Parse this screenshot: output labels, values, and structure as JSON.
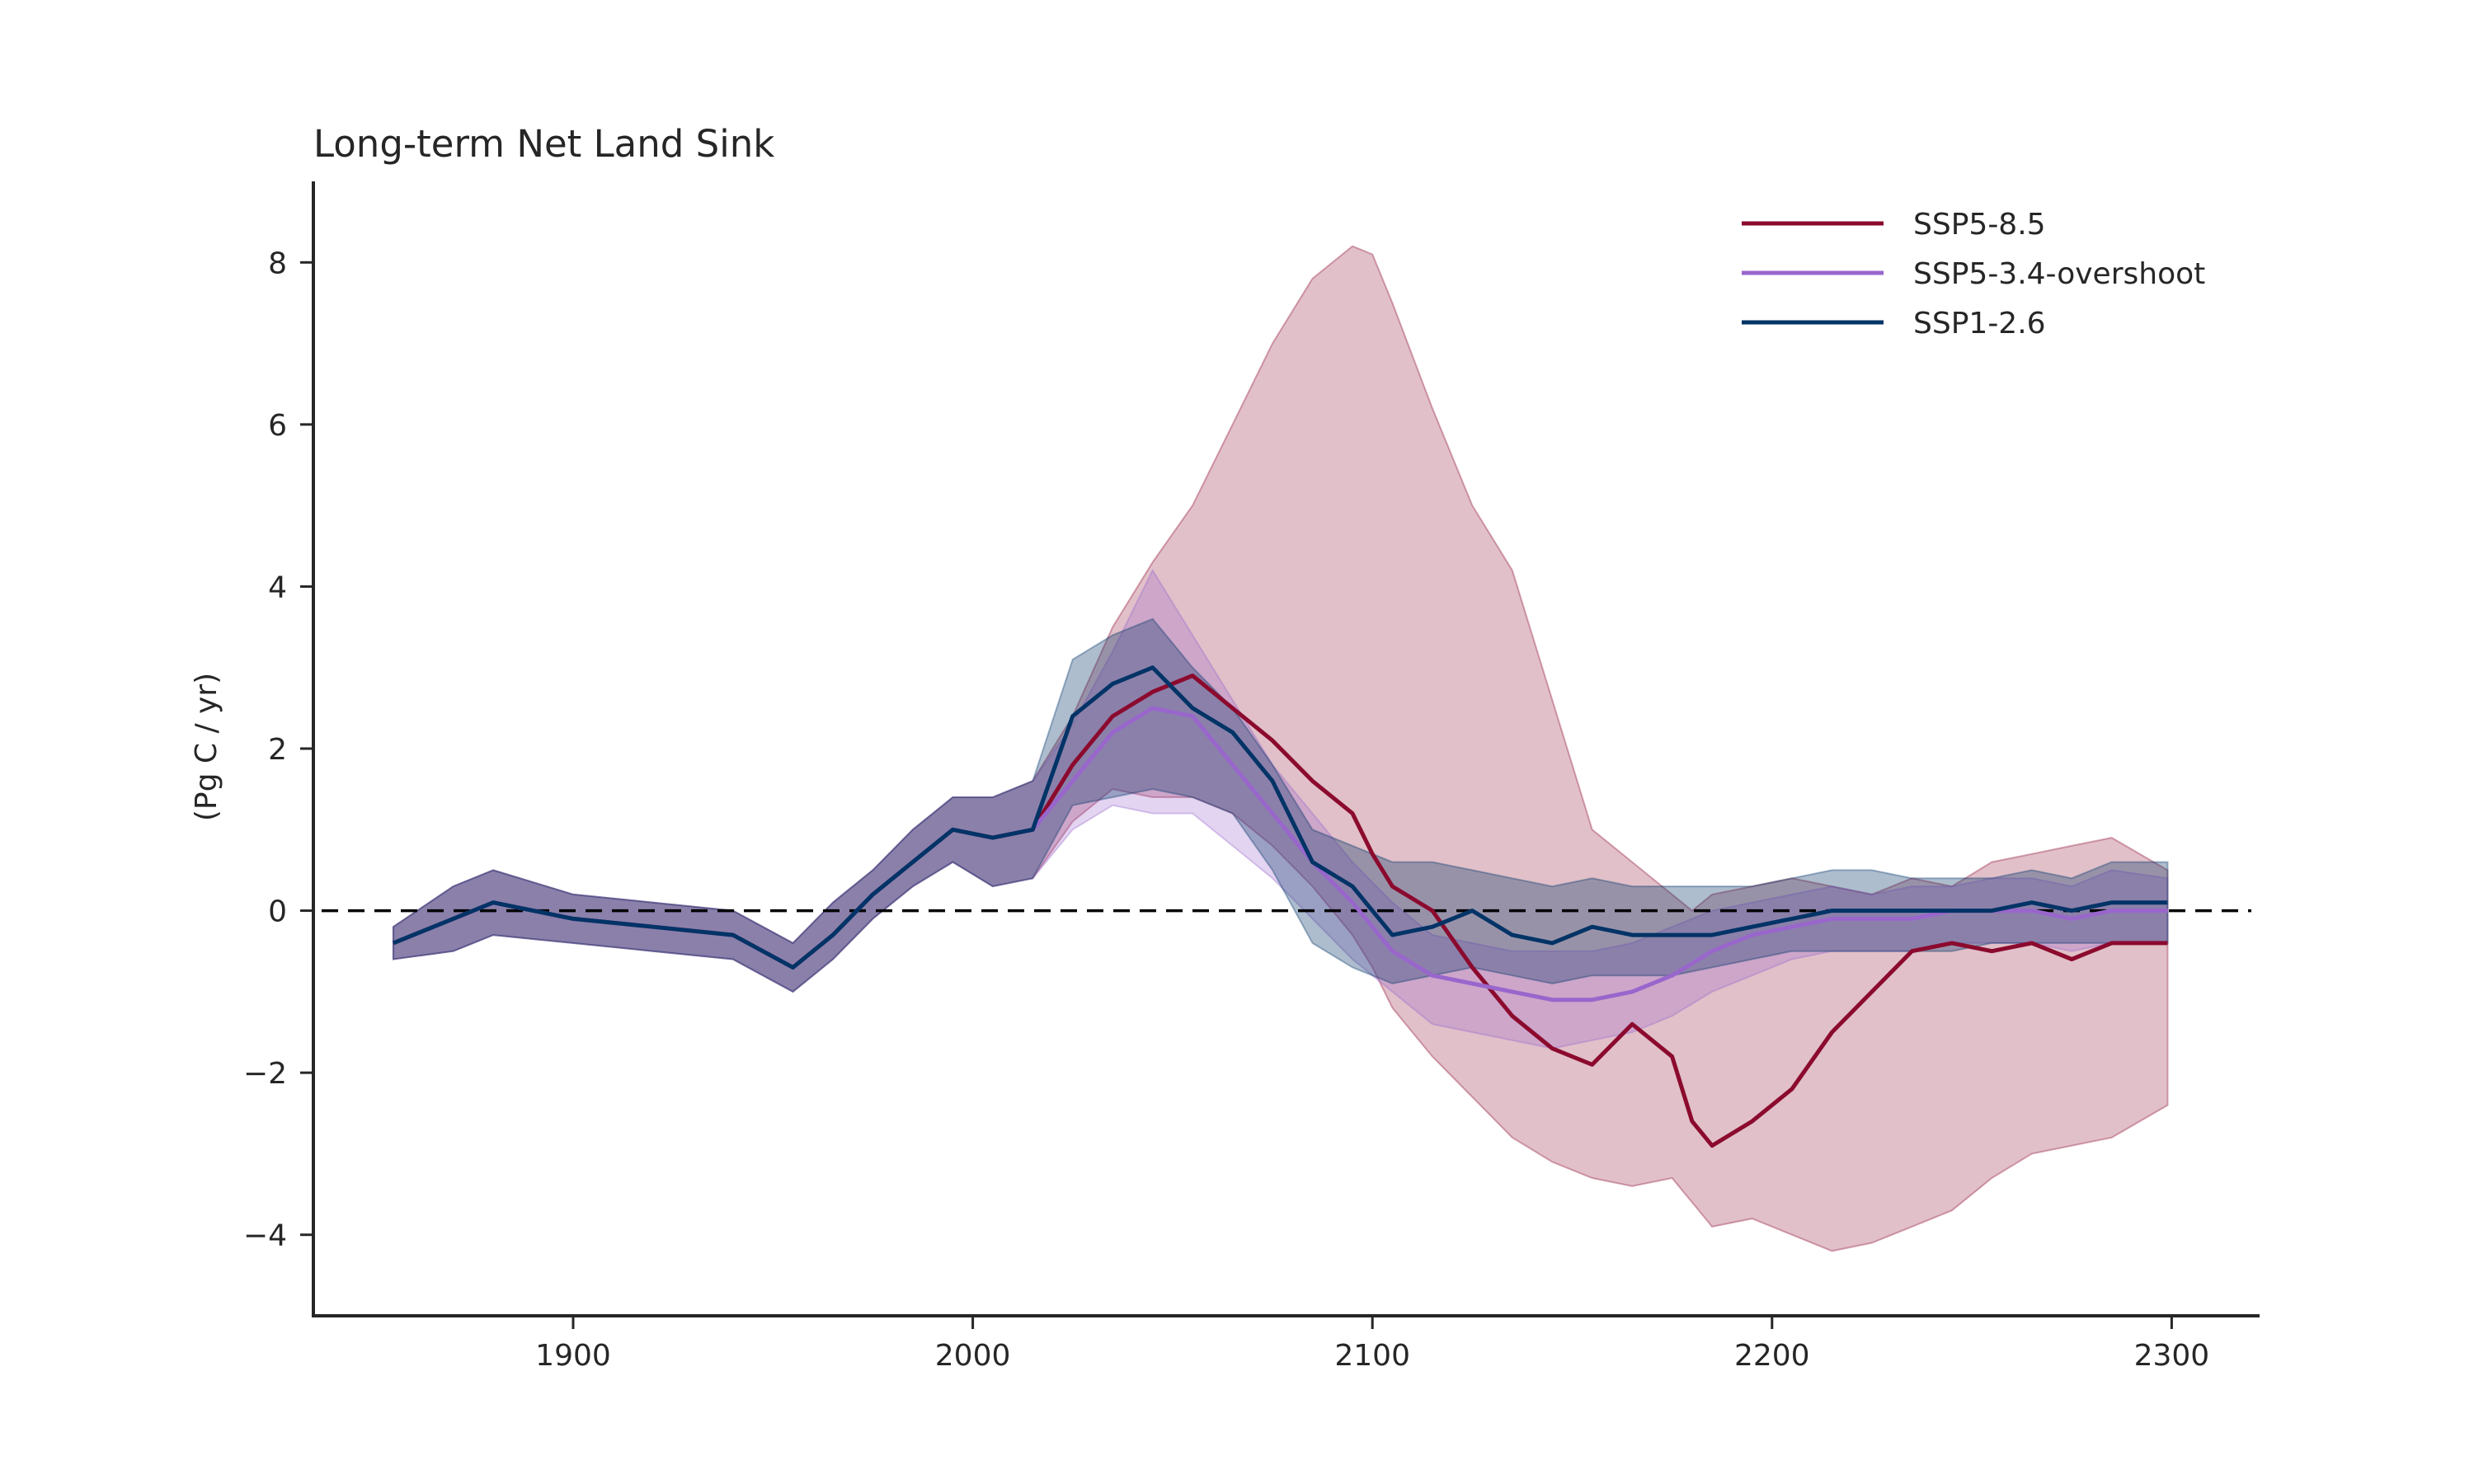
{
  "chart_data": {
    "type": "line",
    "title": "Long-term Net Land Sink",
    "xlabel": "",
    "ylabel": "(Pg C / yr)",
    "xlim": [
      1835,
      2322
    ],
    "ylim": [
      -5,
      9
    ],
    "xticks": [
      1900,
      2000,
      2100,
      2200,
      2300
    ],
    "yticks": [
      -4,
      -2,
      0,
      2,
      4,
      6,
      8
    ],
    "ytick_labels": [
      "−4",
      "−2",
      "0",
      "2",
      "4",
      "6",
      "8"
    ],
    "xtick_labels": [
      "1900",
      "2000",
      "2100",
      "2200",
      "2300"
    ],
    "reference_line": {
      "y": 0,
      "style": "dashed",
      "color": "#000000"
    },
    "grid": false,
    "legend_position": "top-right",
    "series": [
      {
        "name": "SSP5-8.5",
        "color": "#8b0a2e",
        "x": [
          1855,
          1870,
          1880,
          1900,
          1920,
          1940,
          1955,
          1965,
          1975,
          1985,
          1995,
          2005,
          2015,
          2025,
          2035,
          2045,
          2055,
          2065,
          2075,
          2085,
          2095,
          2100,
          2105,
          2115,
          2125,
          2135,
          2145,
          2155,
          2165,
          2175,
          2180,
          2185,
          2195,
          2205,
          2215,
          2225,
          2235,
          2245,
          2255,
          2265,
          2275,
          2285,
          2299
        ],
        "y": [
          -0.4,
          -0.1,
          0.1,
          -0.1,
          -0.2,
          -0.3,
          -0.7,
          -0.3,
          0.2,
          0.6,
          1.0,
          0.9,
          1.0,
          1.8,
          2.4,
          2.7,
          2.9,
          2.5,
          2.1,
          1.6,
          1.2,
          0.7,
          0.3,
          0.0,
          -0.7,
          -1.3,
          -1.7,
          -1.9,
          -1.4,
          -1.8,
          -2.6,
          -2.9,
          -2.6,
          -2.2,
          -1.5,
          -1.0,
          -0.5,
          -0.4,
          -0.5,
          -0.4,
          -0.6,
          -0.4,
          -0.4
        ],
        "upper": [
          -0.2,
          0.3,
          0.5,
          0.2,
          0.1,
          0.0,
          -0.4,
          0.1,
          0.5,
          1.0,
          1.4,
          1.4,
          1.6,
          2.4,
          3.5,
          4.3,
          5.0,
          6.0,
          7.0,
          7.8,
          8.2,
          8.1,
          7.5,
          6.2,
          5.0,
          4.2,
          2.6,
          1.0,
          0.6,
          0.2,
          0.0,
          0.2,
          0.3,
          0.4,
          0.3,
          0.2,
          0.4,
          0.3,
          0.6,
          0.7,
          0.8,
          0.9,
          0.5
        ],
        "lower": [
          -0.6,
          -0.5,
          -0.3,
          -0.4,
          -0.5,
          -0.6,
          -1.0,
          -0.6,
          -0.1,
          0.3,
          0.6,
          0.3,
          0.4,
          1.1,
          1.5,
          1.4,
          1.4,
          1.2,
          0.8,
          0.3,
          -0.3,
          -0.7,
          -1.2,
          -1.8,
          -2.3,
          -2.8,
          -3.1,
          -3.3,
          -3.4,
          -3.3,
          -3.6,
          -3.9,
          -3.8,
          -4.0,
          -4.2,
          -4.1,
          -3.9,
          -3.7,
          -3.3,
          -3.0,
          -2.9,
          -2.8,
          -2.4
        ]
      },
      {
        "name": "SSP5-3.4-overshoot",
        "color": "#9966cc",
        "x": [
          1855,
          1870,
          1880,
          1900,
          1920,
          1940,
          1955,
          1965,
          1975,
          1985,
          1995,
          2005,
          2015,
          2025,
          2035,
          2045,
          2055,
          2065,
          2075,
          2085,
          2095,
          2105,
          2115,
          2125,
          2135,
          2145,
          2155,
          2165,
          2175,
          2185,
          2195,
          2205,
          2215,
          2225,
          2235,
          2245,
          2255,
          2265,
          2275,
          2285,
          2299
        ],
        "y": [
          -0.4,
          -0.1,
          0.1,
          -0.1,
          -0.2,
          -0.3,
          -0.7,
          -0.3,
          0.2,
          0.6,
          1.0,
          0.9,
          1.0,
          1.6,
          2.2,
          2.5,
          2.4,
          1.8,
          1.2,
          0.6,
          0.1,
          -0.5,
          -0.8,
          -0.9,
          -1.0,
          -1.1,
          -1.1,
          -1.0,
          -0.8,
          -0.5,
          -0.3,
          -0.2,
          -0.1,
          -0.1,
          -0.1,
          0.0,
          0.0,
          0.0,
          -0.1,
          0.0,
          0.0
        ],
        "upper": [
          -0.2,
          0.3,
          0.5,
          0.2,
          0.1,
          0.0,
          -0.4,
          0.1,
          0.5,
          1.0,
          1.4,
          1.4,
          1.6,
          2.3,
          3.2,
          4.2,
          3.4,
          2.6,
          1.8,
          1.2,
          0.6,
          0.1,
          -0.3,
          -0.4,
          -0.5,
          -0.5,
          -0.5,
          -0.4,
          -0.2,
          0.0,
          0.1,
          0.2,
          0.3,
          0.2,
          0.3,
          0.3,
          0.4,
          0.4,
          0.3,
          0.5,
          0.4
        ],
        "lower": [
          -0.6,
          -0.5,
          -0.3,
          -0.4,
          -0.5,
          -0.6,
          -1.0,
          -0.6,
          -0.1,
          0.3,
          0.6,
          0.3,
          0.4,
          1.0,
          1.3,
          1.2,
          1.2,
          0.8,
          0.4,
          -0.1,
          -0.6,
          -1.0,
          -1.4,
          -1.5,
          -1.6,
          -1.7,
          -1.6,
          -1.5,
          -1.3,
          -1.0,
          -0.8,
          -0.6,
          -0.5,
          -0.5,
          -0.5,
          -0.4,
          -0.4,
          -0.4,
          -0.5,
          -0.4,
          -0.4
        ]
      },
      {
        "name": "SSP1-2.6",
        "color": "#003366",
        "x": [
          1855,
          1870,
          1880,
          1900,
          1920,
          1940,
          1955,
          1965,
          1975,
          1985,
          1995,
          2005,
          2015,
          2025,
          2035,
          2045,
          2055,
          2065,
          2075,
          2085,
          2095,
          2105,
          2115,
          2125,
          2135,
          2145,
          2155,
          2165,
          2175,
          2185,
          2195,
          2205,
          2215,
          2225,
          2235,
          2245,
          2255,
          2265,
          2275,
          2285,
          2299
        ],
        "y": [
          -0.4,
          -0.1,
          0.1,
          -0.1,
          -0.2,
          -0.3,
          -0.7,
          -0.3,
          0.2,
          0.6,
          1.0,
          0.9,
          1.0,
          2.4,
          2.8,
          3.0,
          2.5,
          2.2,
          1.6,
          0.6,
          0.3,
          -0.3,
          -0.2,
          0.0,
          -0.3,
          -0.4,
          -0.2,
          -0.3,
          -0.3,
          -0.3,
          -0.2,
          -0.1,
          0.0,
          0.0,
          0.0,
          0.0,
          0.0,
          0.1,
          0.0,
          0.1,
          0.1
        ],
        "upper": [
          -0.2,
          0.3,
          0.5,
          0.2,
          0.1,
          0.0,
          -0.4,
          0.1,
          0.5,
          1.0,
          1.4,
          1.4,
          1.6,
          3.1,
          3.4,
          3.6,
          3.0,
          2.5,
          1.8,
          1.0,
          0.8,
          0.6,
          0.6,
          0.5,
          0.4,
          0.3,
          0.4,
          0.3,
          0.3,
          0.3,
          0.3,
          0.4,
          0.5,
          0.5,
          0.4,
          0.4,
          0.4,
          0.5,
          0.4,
          0.6,
          0.6
        ],
        "lower": [
          -0.6,
          -0.5,
          -0.3,
          -0.4,
          -0.5,
          -0.6,
          -1.0,
          -0.6,
          -0.1,
          0.3,
          0.6,
          0.3,
          0.4,
          1.3,
          1.4,
          1.5,
          1.4,
          1.2,
          0.5,
          -0.4,
          -0.7,
          -0.9,
          -0.8,
          -0.7,
          -0.8,
          -0.9,
          -0.8,
          -0.8,
          -0.8,
          -0.7,
          -0.6,
          -0.5,
          -0.5,
          -0.5,
          -0.5,
          -0.5,
          -0.4,
          -0.4,
          -0.4,
          -0.4,
          -0.4
        ]
      }
    ]
  }
}
